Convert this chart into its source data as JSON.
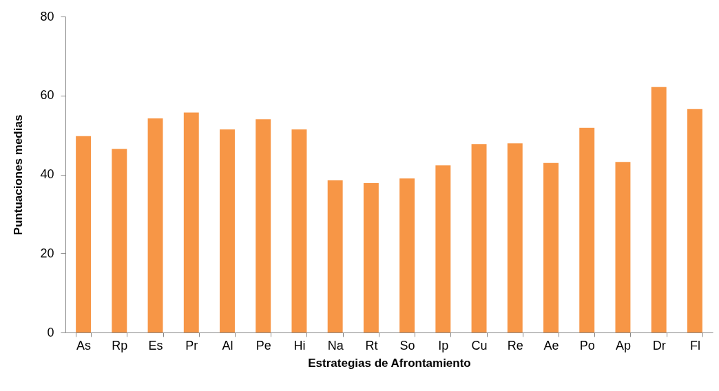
{
  "chart_data": {
    "type": "bar",
    "xlabel": "Estrategias de Afrontamiento",
    "ylabel": "Puntuaciones medias",
    "categories": [
      "As",
      "Rp",
      "Es",
      "Pr",
      "Al",
      "Pe",
      "Hi",
      "Na",
      "Rt",
      "So",
      "Ip",
      "Cu",
      "Re",
      "Ae",
      "Po",
      "Ap",
      "Dr",
      "Fl"
    ],
    "values": [
      49.7,
      46.5,
      54.2,
      55.7,
      51.4,
      54.0,
      51.4,
      38.5,
      37.8,
      39.0,
      42.3,
      47.7,
      47.9,
      42.9,
      51.8,
      43.2,
      62.2,
      56.6
    ],
    "color": "#f79646",
    "ylim": [
      0,
      80
    ],
    "yticks": [
      0,
      20,
      40,
      60,
      80
    ],
    "grid": false
  }
}
